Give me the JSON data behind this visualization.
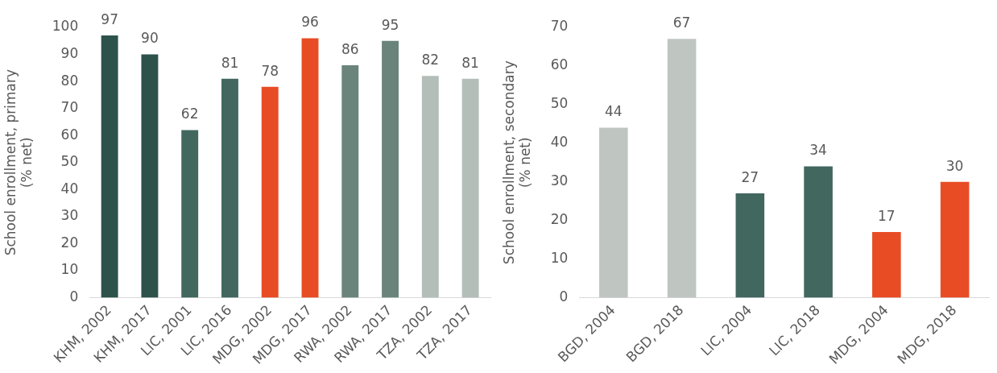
{
  "chart_data": [
    {
      "type": "bar",
      "ylabel": "School enrollment, primary\n(% net)",
      "categories": [
        "KHM, 2002",
        "KHM, 2017",
        "LIC, 2001",
        "LIC, 2016",
        "MDG, 2002",
        "MDG, 2017",
        "RWA, 2002",
        "RWA, 2017",
        "TZA, 2002",
        "TZA, 2017"
      ],
      "values": [
        97,
        90,
        62,
        81,
        78,
        96,
        86,
        95,
        82,
        81
      ],
      "colors": [
        "#2d524c",
        "#2d524c",
        "#41675f",
        "#41675f",
        "#e84c25",
        "#e84c25",
        "#6a847b",
        "#6a847b",
        "#b4beb9",
        "#b4beb9"
      ],
      "ylim": [
        0,
        100
      ],
      "yticks": [
        0,
        10,
        20,
        30,
        40,
        50,
        60,
        70,
        80,
        90,
        100
      ],
      "grid": false,
      "legend": false,
      "data_labels": true
    },
    {
      "type": "bar",
      "ylabel": "School enrollment, secondary\n(% net)",
      "categories": [
        "BGD, 2004",
        "BGD, 2018",
        "LIC, 2004",
        "LIC, 2018",
        "MDG, 2004",
        "MDG, 2018"
      ],
      "values": [
        44,
        67,
        27,
        34,
        17,
        30
      ],
      "colors": [
        "#bfc6c1",
        "#bfc6c1",
        "#41675f",
        "#41675f",
        "#e84c25",
        "#e84c25"
      ],
      "ylim": [
        0,
        70
      ],
      "yticks": [
        0,
        10,
        20,
        30,
        40,
        50,
        60,
        70
      ],
      "grid": false,
      "legend": false,
      "data_labels": true
    }
  ]
}
